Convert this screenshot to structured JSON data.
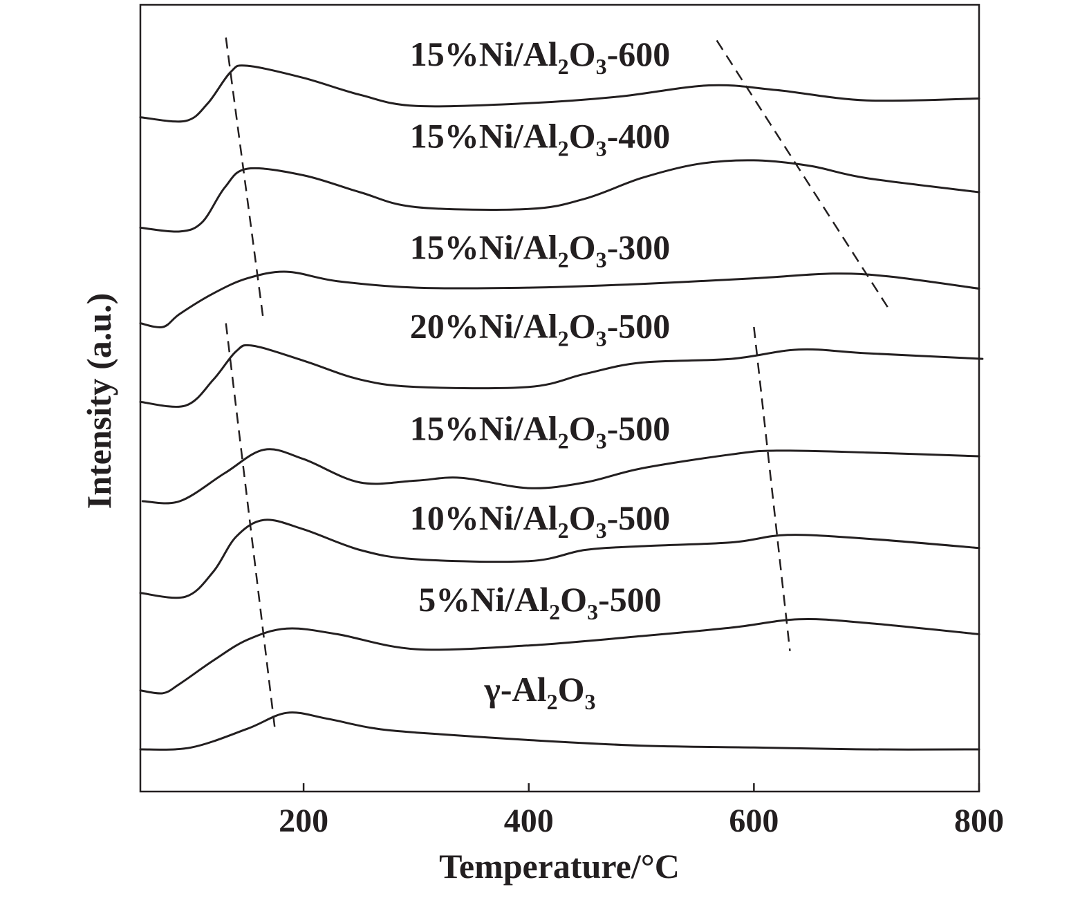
{
  "chart_data": {
    "type": "line",
    "xlabel": "Temperature/°C",
    "ylabel": "Intensity (a.u.)",
    "xlim": [
      55,
      800
    ],
    "xticks": [
      200,
      400,
      600,
      800
    ],
    "ylim": [
      0,
      8.4
    ],
    "y_axis_ticks_shown": false,
    "grid": false,
    "legend": "none",
    "colors": {
      "line": "#231f20",
      "text": "#231f20",
      "background": "#ffffff"
    },
    "series": [
      {
        "name": "γ-Al₂O₃",
        "label_main": "γ-Al",
        "label_sub1": "2",
        "label_mid": "O",
        "label_sub2": "3",
        "label_tail": "",
        "points": [
          [
            55,
            0.45
          ],
          [
            100,
            0.47
          ],
          [
            150,
            0.67
          ],
          [
            185,
            0.84
          ],
          [
            220,
            0.78
          ],
          [
            260,
            0.68
          ],
          [
            300,
            0.63
          ],
          [
            400,
            0.55
          ],
          [
            500,
            0.49
          ],
          [
            600,
            0.47
          ],
          [
            700,
            0.45
          ],
          [
            800,
            0.45
          ]
        ]
      },
      {
        "name": "5%Ni/Al₂O₃-500",
        "label_main": "5%Ni/Al",
        "label_sub1": "2",
        "label_mid": "O",
        "label_sub2": "3",
        "label_tail": "-500",
        "points": [
          [
            55,
            1.08
          ],
          [
            75,
            1.05
          ],
          [
            90,
            1.15
          ],
          [
            120,
            1.4
          ],
          [
            150,
            1.62
          ],
          [
            185,
            1.74
          ],
          [
            230,
            1.68
          ],
          [
            300,
            1.52
          ],
          [
            400,
            1.56
          ],
          [
            500,
            1.66
          ],
          [
            580,
            1.75
          ],
          [
            640,
            1.84
          ],
          [
            700,
            1.8
          ],
          [
            800,
            1.68
          ]
        ]
      },
      {
        "name": "10%Ni/Al₂O₃-500",
        "label_main": "10%Ni/Al",
        "label_sub1": "2",
        "label_mid": "O",
        "label_sub2": "3",
        "label_tail": "-500",
        "points": [
          [
            55,
            2.12
          ],
          [
            95,
            2.08
          ],
          [
            120,
            2.35
          ],
          [
            140,
            2.72
          ],
          [
            165,
            2.9
          ],
          [
            200,
            2.8
          ],
          [
            250,
            2.58
          ],
          [
            300,
            2.48
          ],
          [
            400,
            2.46
          ],
          [
            450,
            2.58
          ],
          [
            500,
            2.62
          ],
          [
            580,
            2.66
          ],
          [
            630,
            2.74
          ],
          [
            700,
            2.7
          ],
          [
            800,
            2.6
          ]
        ]
      },
      {
        "name": "15%Ni/Al₂O₃-500",
        "label_main": "15%Ni/Al",
        "label_sub1": "2",
        "label_mid": "O",
        "label_sub2": "3",
        "label_tail": "-500",
        "points": [
          [
            57,
            3.1
          ],
          [
            90,
            3.1
          ],
          [
            130,
            3.4
          ],
          [
            165,
            3.65
          ],
          [
            200,
            3.55
          ],
          [
            250,
            3.3
          ],
          [
            300,
            3.32
          ],
          [
            340,
            3.35
          ],
          [
            400,
            3.24
          ],
          [
            450,
            3.3
          ],
          [
            500,
            3.45
          ],
          [
            580,
            3.6
          ],
          [
            620,
            3.64
          ],
          [
            700,
            3.62
          ],
          [
            800,
            3.58
          ]
        ]
      },
      {
        "name": "20%Ni/Al₂O₃-500",
        "label_main": "20%Ni/Al",
        "label_sub1": "2",
        "label_mid": "O",
        "label_sub2": "3",
        "label_tail": "-500",
        "points": [
          [
            55,
            4.16
          ],
          [
            95,
            4.12
          ],
          [
            120,
            4.4
          ],
          [
            140,
            4.7
          ],
          [
            155,
            4.76
          ],
          [
            200,
            4.6
          ],
          [
            250,
            4.4
          ],
          [
            300,
            4.32
          ],
          [
            400,
            4.32
          ],
          [
            450,
            4.46
          ],
          [
            500,
            4.58
          ],
          [
            580,
            4.62
          ],
          [
            640,
            4.72
          ],
          [
            700,
            4.68
          ],
          [
            803,
            4.62
          ]
        ]
      },
      {
        "name": "15%Ni/Al₂O₃-300",
        "label_main": "15%Ni/Al",
        "label_sub1": "2",
        "label_mid": "O",
        "label_sub2": "3",
        "label_tail": "-300",
        "points": [
          [
            55,
            5.0
          ],
          [
            75,
            4.96
          ],
          [
            90,
            5.1
          ],
          [
            120,
            5.32
          ],
          [
            150,
            5.48
          ],
          [
            185,
            5.55
          ],
          [
            230,
            5.45
          ],
          [
            300,
            5.38
          ],
          [
            400,
            5.38
          ],
          [
            500,
            5.42
          ],
          [
            600,
            5.48
          ],
          [
            670,
            5.53
          ],
          [
            720,
            5.5
          ],
          [
            800,
            5.37
          ]
        ]
      },
      {
        "name": "15%Ni/Al₂O₃-400",
        "label_main": "15%Ni/Al",
        "label_sub1": "2",
        "label_mid": "O",
        "label_sub2": "3",
        "label_tail": "-400",
        "points": [
          [
            55,
            6.02
          ],
          [
            90,
            5.98
          ],
          [
            110,
            6.08
          ],
          [
            130,
            6.45
          ],
          [
            150,
            6.65
          ],
          [
            200,
            6.58
          ],
          [
            250,
            6.4
          ],
          [
            300,
            6.24
          ],
          [
            400,
            6.22
          ],
          [
            450,
            6.33
          ],
          [
            500,
            6.55
          ],
          [
            550,
            6.7
          ],
          [
            600,
            6.74
          ],
          [
            650,
            6.68
          ],
          [
            700,
            6.55
          ],
          [
            800,
            6.4
          ]
        ]
      },
      {
        "name": "15%Ni/Al₂O₃-600",
        "label_main": "15%Ni/Al",
        "label_sub1": "2",
        "label_mid": "O",
        "label_sub2": "3",
        "label_tail": "-600",
        "points": [
          [
            55,
            7.2
          ],
          [
            95,
            7.16
          ],
          [
            115,
            7.35
          ],
          [
            135,
            7.68
          ],
          [
            150,
            7.75
          ],
          [
            200,
            7.62
          ],
          [
            250,
            7.44
          ],
          [
            300,
            7.32
          ],
          [
            400,
            7.35
          ],
          [
            480,
            7.42
          ],
          [
            560,
            7.54
          ],
          [
            620,
            7.49
          ],
          [
            700,
            7.38
          ],
          [
            800,
            7.4
          ]
        ]
      }
    ],
    "guide_lines": [
      {
        "name": "peak-shift-low-series-a",
        "from": [
          131,
          8.05
        ],
        "to": [
          164,
          5.06
        ]
      },
      {
        "name": "peak-shift-high-series-a",
        "from": [
          567,
          8.02
        ],
        "to": [
          720,
          5.15
        ]
      },
      {
        "name": "peak-shift-low-series-b",
        "from": [
          131,
          5.0
        ],
        "to": [
          175,
          0.62
        ]
      },
      {
        "name": "peak-shift-high-series-b",
        "from": [
          600,
          4.96
        ],
        "to": [
          632,
          1.5
        ]
      }
    ]
  }
}
